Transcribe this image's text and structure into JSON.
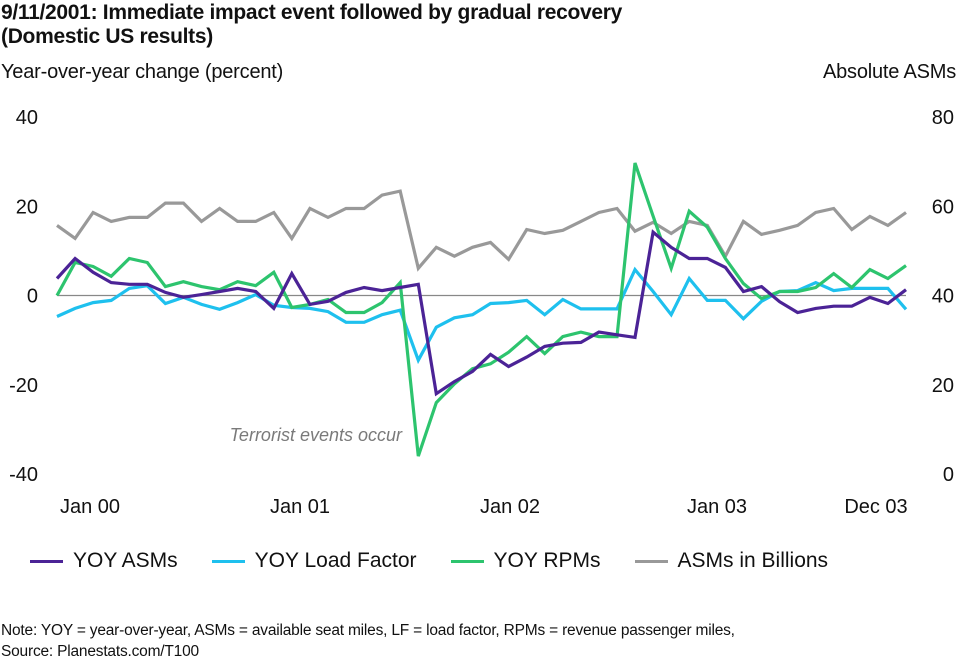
{
  "chart_data": {
    "type": "line",
    "title": "9/11/2001: Immediate impact event followed by gradual recovery (Domestic US results)",
    "title_lines": [
      "9/11/2001: Immediate impact event followed by gradual recovery",
      "(Domestic US results)"
    ],
    "ylabel_left": "Year-over-year change (percent)",
    "ylabel_right": "Absolute ASMs",
    "ylim_left": [
      -40,
      40
    ],
    "ylim_right": [
      0,
      80
    ],
    "yticks_left": [
      "40",
      "20",
      "0",
      "-20",
      "-40"
    ],
    "yticks_right": [
      "80",
      "60",
      "40",
      "20",
      "0"
    ],
    "yticks_left_values": [
      40,
      20,
      0,
      -20,
      -40
    ],
    "yticks_right_values": [
      80,
      60,
      40,
      20,
      0
    ],
    "x_count": 48,
    "x_start": "Jan 2000",
    "x_end": "Dec 2003",
    "xtick_labels": [
      {
        "label": "Jan 00",
        "index": 0
      },
      {
        "label": "Jan 01",
        "index": 12
      },
      {
        "label": "Jan 02",
        "index": 24
      },
      {
        "label": "Jan 03",
        "index": 36
      },
      {
        "label": "Dec 03",
        "index": 47
      }
    ],
    "grid": false,
    "zero_line": true,
    "legend_position": "bottom",
    "annotation": {
      "text": "Terrorist events occur",
      "near_index": 20
    },
    "series": [
      {
        "name": "YOY ASMs",
        "axis": "left",
        "color": "#4b2396",
        "values": [
          3.8,
          8.3,
          5.2,
          2.9,
          2.5,
          2.5,
          0.7,
          -0.4,
          0.2,
          0.9,
          1.6,
          0.9,
          -2.9,
          4.9,
          -2.0,
          -1.3,
          0.7,
          1.8,
          1.1,
          1.8,
          2.5,
          -22.0,
          -19.3,
          -17.0,
          -13.2,
          -15.9,
          -13.8,
          -11.4,
          -10.7,
          -10.5,
          -8.2,
          -8.8,
          -9.4,
          14.2,
          10.8,
          8.3,
          8.3,
          6.3,
          0.9,
          2.0,
          -1.4,
          -3.8,
          -2.9,
          -2.4,
          -2.4,
          -0.4,
          -1.8,
          1.3
        ]
      },
      {
        "name": "YOY Load Factor",
        "axis": "left",
        "color": "#1ec0ee",
        "values": [
          -4.7,
          -2.9,
          -1.6,
          -1.1,
          1.6,
          2.2,
          -1.8,
          -0.4,
          -2.0,
          -3.1,
          -1.6,
          0.2,
          -2.2,
          -2.7,
          -2.9,
          -3.6,
          -6.0,
          -6.0,
          -4.3,
          -3.3,
          -14.5,
          -7.1,
          -5.0,
          -4.3,
          -1.8,
          -1.6,
          -1.1,
          -4.3,
          -0.9,
          -3.0,
          -3.0,
          -3.0,
          5.8,
          0.9,
          -4.3,
          3.8,
          -1.1,
          -1.1,
          -5.2,
          -1.3,
          0.9,
          1.1,
          2.9,
          1.1,
          1.6,
          1.6,
          1.6,
          -3.1
        ]
      },
      {
        "name": "YOY RPMs",
        "axis": "left",
        "color": "#2dc46e",
        "values": [
          0.0,
          7.4,
          6.5,
          4.3,
          8.3,
          7.4,
          2.0,
          3.1,
          2.0,
          1.3,
          3.1,
          2.2,
          5.2,
          -2.7,
          -2.0,
          -0.9,
          -3.8,
          -3.8,
          -1.6,
          2.9,
          -36.0,
          -24.0,
          -19.8,
          -16.4,
          -15.3,
          -12.7,
          -9.2,
          -13.0,
          -9.2,
          -8.2,
          -9.2,
          -9.2,
          29.7,
          17.8,
          6.1,
          18.9,
          15.3,
          8.3,
          2.7,
          -0.7,
          0.9,
          0.9,
          1.8,
          4.9,
          1.8,
          5.8,
          3.8,
          6.7
        ]
      },
      {
        "name": "ASMs in Billions",
        "axis": "right",
        "color": "#999999",
        "values": [
          55.7,
          52.8,
          58.6,
          56.6,
          57.5,
          57.5,
          60.7,
          60.7,
          56.6,
          59.5,
          56.6,
          56.6,
          58.6,
          52.8,
          59.5,
          57.5,
          59.5,
          59.5,
          62.5,
          63.4,
          46.1,
          50.8,
          48.8,
          50.8,
          51.9,
          48.1,
          54.8,
          53.9,
          54.6,
          56.6,
          58.6,
          59.5,
          54.4,
          56.4,
          53.9,
          56.6,
          55.7,
          48.8,
          56.6,
          53.7,
          54.6,
          55.7,
          58.6,
          59.5,
          54.8,
          57.7,
          55.7,
          58.6
        ]
      }
    ]
  },
  "note": {
    "line1": "Note:  YOY = year-over-year, ASMs = available seat miles, LF =  load factor, RPMs = revenue passenger miles,",
    "line2": "Source: Planestats.com/T100"
  }
}
